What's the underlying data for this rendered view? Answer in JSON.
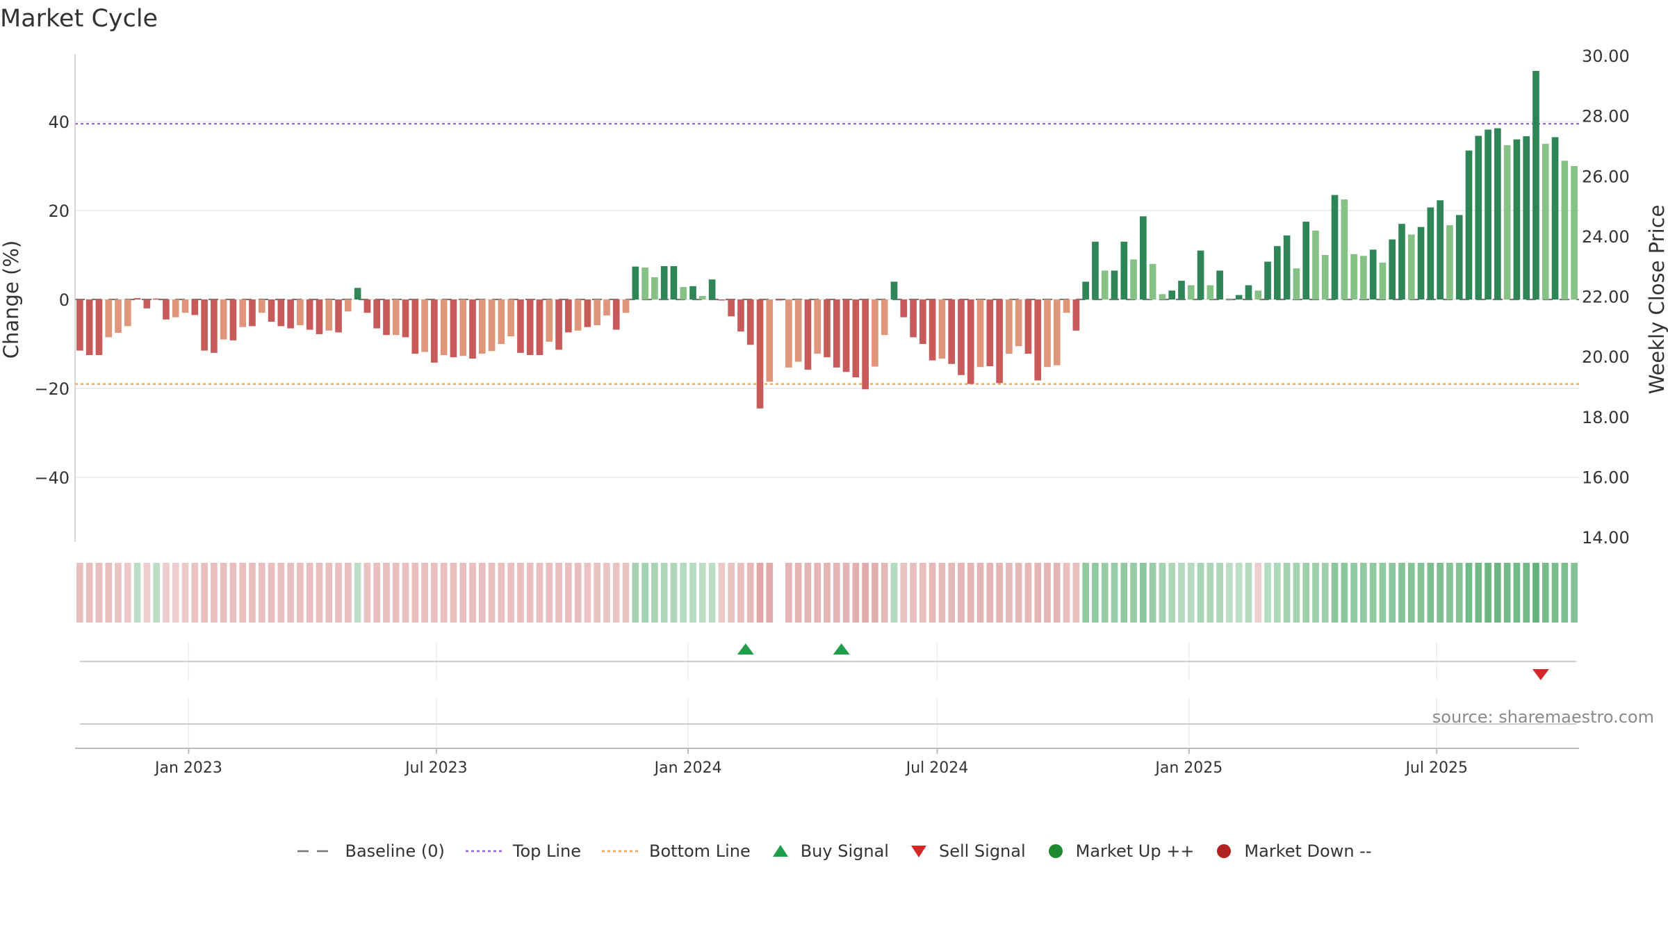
{
  "chart_data": {
    "type": "bar",
    "title": "Market Cycle",
    "ylabel": "Change (%)",
    "y2label": "Weekly Close Price",
    "ylim": [
      -55,
      55
    ],
    "y2lim": [
      14,
      30
    ],
    "yticks": [
      -40,
      -20,
      0,
      20,
      40
    ],
    "y2ticks": [
      "14.00",
      "16.00",
      "18.00",
      "20.00",
      "22.00",
      "24.00",
      "26.00",
      "28.00",
      "30.00"
    ],
    "x_range": [
      "2022-10-10",
      "2025-10-13"
    ],
    "x_ticks": [
      {
        "date": "2023-01-01",
        "label": "Jan 2023"
      },
      {
        "date": "2023-07-01",
        "label": "Jul 2023"
      },
      {
        "date": "2024-01-01",
        "label": "Jan 2024"
      },
      {
        "date": "2024-07-01",
        "label": "Jul 2024"
      },
      {
        "date": "2025-01-01",
        "label": "Jan 2025"
      },
      {
        "date": "2025-07-01",
        "label": "Jul 2025"
      }
    ],
    "first_week": "2022-10-10",
    "weekly_change": [
      -11.5,
      -12.5,
      -12.5,
      -8.5,
      -7.5,
      -6,
      0.3,
      -2,
      0.2,
      -4.5,
      -4,
      -3,
      -3.5,
      -11.5,
      -12,
      -9,
      -9.2,
      -6.2,
      -6,
      -3,
      -5,
      -6,
      -6.5,
      -5.8,
      -6.8,
      -7.8,
      -7,
      -7.4,
      -2.7,
      2.6,
      -3,
      -6.5,
      -8,
      -8,
      -8.5,
      -12.2,
      -11.8,
      -14.2,
      -12.5,
      -13,
      -12.7,
      -13.3,
      -12.2,
      -11.6,
      -10,
      -8.3,
      -12,
      -12.5,
      -12.5,
      -9.5,
      -11.3,
      -7.4,
      -7,
      -6.2,
      -5.8,
      -3.6,
      -6.8,
      -3,
      7.4,
      7.2,
      5,
      7.5,
      7.5,
      2.8,
      3,
      0.8,
      4.5,
      0,
      -3.8,
      -7.2,
      -10.2,
      -24.5,
      -18.5,
      0,
      -15.3,
      -14,
      -15.8,
      -12.2,
      -13,
      -15.3,
      -16.3,
      -17.5,
      -20.2,
      -15.1,
      -8,
      4,
      -4,
      -8.5,
      -10,
      -13.7,
      -13.3,
      -14.5,
      -17,
      -19,
      -15.2,
      -15,
      -18.8,
      -12.2,
      -10.5,
      -12.2,
      -18.2,
      -15.2,
      -14.8,
      -3,
      -7,
      4,
      13,
      6.5,
      6.5,
      13,
      9,
      18.7,
      8,
      1.2,
      2,
      4.2,
      3.2,
      11,
      3.2,
      6.5,
      0,
      1,
      3.2,
      2,
      8.5,
      12,
      14.4,
      7,
      17.5,
      15.5,
      10,
      23.5,
      22.5,
      10.2,
      9.8,
      11.2,
      8.3,
      13.5,
      17,
      14.6,
      16.3,
      20.7,
      22.3,
      16.7,
      19,
      33.5,
      36.8,
      38.2,
      38.5,
      34.7,
      36,
      36.7,
      51.4,
      35,
      36.5,
      31.2,
      30
    ],
    "bar_shades": [
      "dn1",
      "dn1",
      "dn1",
      "dn2",
      "dn2",
      "dn2",
      "dn1",
      "dn1",
      "dn1",
      "dn1",
      "dn2",
      "dn2",
      "dn1",
      "dn1",
      "dn1",
      "dn2",
      "dn1",
      "dn2",
      "dn1",
      "dn2",
      "dn1",
      "dn1",
      "dn1",
      "dn2",
      "dn1",
      "dn1",
      "dn2",
      "dn1",
      "dn2",
      "up1",
      "dn1",
      "dn1",
      "dn1",
      "dn2",
      "dn1",
      "dn1",
      "dn2",
      "dn1",
      "dn2",
      "dn1",
      "dn2",
      "dn1",
      "dn2",
      "dn2",
      "dn2",
      "dn2",
      "dn1",
      "dn1",
      "dn1",
      "dn2",
      "dn1",
      "dn1",
      "dn2",
      "dn1",
      "dn2",
      "dn2",
      "dn1",
      "dn2",
      "up1",
      "up2",
      "up2",
      "up1",
      "up1",
      "up2",
      "up1",
      "up2",
      "up1",
      "dn1",
      "dn1",
      "dn1",
      "dn1",
      "dn1",
      "dn2",
      "dn1",
      "dn2",
      "dn2",
      "dn1",
      "dn2",
      "dn1",
      "dn1",
      "dn1",
      "dn1",
      "dn1",
      "dn2",
      "dn2",
      "up1",
      "dn1",
      "dn1",
      "dn1",
      "dn1",
      "dn2",
      "dn1",
      "dn1",
      "dn1",
      "dn2",
      "dn1",
      "dn1",
      "dn2",
      "dn2",
      "dn1",
      "dn1",
      "dn2",
      "dn2",
      "dn2",
      "dn1",
      "up1",
      "up1",
      "up2",
      "up1",
      "up1",
      "up2",
      "up1",
      "up2",
      "up2",
      "up1",
      "up1",
      "up2",
      "up1",
      "up2",
      "up1",
      "up2",
      "up1",
      "up1",
      "up2",
      "up1",
      "up1",
      "up1",
      "up2",
      "up1",
      "up2",
      "up2",
      "up1",
      "up2",
      "up2",
      "up2",
      "up1",
      "up2",
      "up1",
      "up1",
      "up2",
      "up1",
      "up1",
      "up1",
      "up2",
      "up1",
      "up1",
      "up1",
      "up1",
      "up1",
      "up2",
      "up1",
      "up1",
      "up1",
      "up2",
      "up1",
      "up2",
      "up2"
    ],
    "cycle_band_intensity": [
      0.35,
      0.35,
      0.35,
      0.35,
      0.3,
      0.25,
      -0.25,
      0.2,
      -0.25,
      0.2,
      0.2,
      0.25,
      0.3,
      0.35,
      0.35,
      0.35,
      0.35,
      0.35,
      0.35,
      0.35,
      0.35,
      0.35,
      0.35,
      0.35,
      0.35,
      0.35,
      0.35,
      0.35,
      0.35,
      -0.25,
      0.3,
      0.35,
      0.35,
      0.35,
      0.35,
      0.35,
      0.35,
      0.35,
      0.35,
      0.35,
      0.35,
      0.35,
      0.35,
      0.35,
      0.35,
      0.35,
      0.35,
      0.35,
      0.35,
      0.35,
      0.35,
      0.35,
      0.35,
      0.3,
      0.3,
      0.3,
      0.3,
      0.3,
      -0.45,
      -0.45,
      -0.4,
      -0.35,
      -0.35,
      -0.3,
      -0.3,
      -0.25,
      -0.25,
      0.25,
      0.3,
      0.35,
      0.4,
      0.6,
      0.55,
      null,
      0.45,
      0.45,
      0.45,
      0.45,
      0.45,
      0.45,
      0.45,
      0.5,
      0.55,
      0.5,
      0.4,
      -0.3,
      0.3,
      0.35,
      0.35,
      0.4,
      0.4,
      0.4,
      0.45,
      0.45,
      0.45,
      0.45,
      0.45,
      0.4,
      0.4,
      0.4,
      0.45,
      0.45,
      0.45,
      0.35,
      0.35,
      -0.6,
      -0.6,
      -0.55,
      -0.55,
      -0.6,
      -0.55,
      -0.65,
      -0.55,
      -0.45,
      -0.35,
      -0.3,
      -0.3,
      -0.4,
      -0.35,
      -0.35,
      -0.25,
      -0.25,
      -0.3,
      0.2,
      -0.3,
      -0.35,
      -0.45,
      -0.45,
      -0.5,
      -0.5,
      -0.5,
      -0.65,
      -0.65,
      -0.6,
      -0.6,
      -0.6,
      -0.6,
      -0.65,
      -0.7,
      -0.7,
      -0.7,
      -0.75,
      -0.75,
      -0.7,
      -0.7,
      -0.85,
      -0.85,
      -0.9,
      -0.9,
      -0.85,
      -0.85,
      -0.85,
      -1,
      -0.8,
      -0.8,
      -0.75,
      -0.7
    ],
    "reference_lines": [
      {
        "name": "Baseline (0)",
        "value": 0,
        "style": "dashed",
        "color": "#777777"
      },
      {
        "name": "Top Line",
        "value": 39.5,
        "style": "dotted",
        "color": "#9b59d6"
      },
      {
        "name": "Bottom Line",
        "value": -19,
        "style": "dotted",
        "color": "#f0a050"
      }
    ],
    "buy_signals": [
      "2024-02-12",
      "2024-04-22"
    ],
    "sell_signals": [
      "2025-09-15"
    ],
    "market_up_markers": [],
    "market_down_markers": [],
    "legend_position": "bottom-center",
    "grid": true
  },
  "legend": [
    {
      "label": "Baseline (0)",
      "kind": "dash",
      "color": "#777777"
    },
    {
      "label": "Top Line",
      "kind": "dot-line",
      "color": "#9b59d6"
    },
    {
      "label": "Bottom Line",
      "kind": "dot-line",
      "color": "#f0a050"
    },
    {
      "label": "Buy Signal",
      "kind": "triangle-up",
      "color": "#1e9e4a"
    },
    {
      "label": "Sell Signal",
      "kind": "triangle-down",
      "color": "#d62728"
    },
    {
      "label": "Market Up ++",
      "kind": "circle",
      "color": "#1e8a2e"
    },
    {
      "label": "Market Down --",
      "kind": "circle",
      "color": "#b22222"
    }
  ],
  "source_text": "source: sharemaestro.com",
  "colors": {
    "up1": "#2e8555",
    "up2": "#86c286",
    "dn1": "#c85a5a",
    "dn2": "#e0967a",
    "band_up": "#3ea05a",
    "band_dn": "#c86464",
    "grid": "#e6e6e6",
    "axis": "#bbbbbb"
  }
}
